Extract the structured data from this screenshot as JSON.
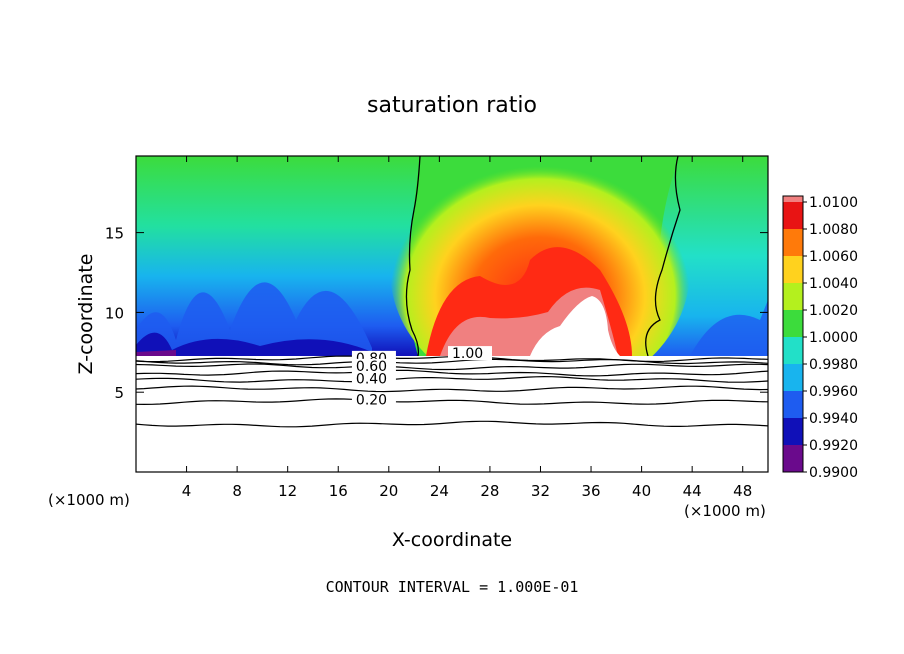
{
  "chart_data": {
    "type": "heatmap",
    "title": "saturation ratio",
    "xlabel": "X-coordinate",
    "ylabel": "Z-coordinate",
    "x_unit": "(×1000 m)",
    "xlim": [
      0,
      50
    ],
    "ylim": [
      0,
      19.8
    ],
    "xticks": [
      4,
      8,
      12,
      16,
      20,
      24,
      28,
      32,
      36,
      40,
      44,
      48
    ],
    "yticks": [
      5,
      10,
      15
    ],
    "colorbar": {
      "levels": [
        0.99,
        0.992,
        0.994,
        0.996,
        0.998,
        1.0,
        1.002,
        1.004,
        1.006,
        1.008,
        1.01
      ],
      "labels": [
        "0.9900",
        "0.9920",
        "0.9940",
        "0.9960",
        "0.9980",
        "1.0000",
        "1.0020",
        "1.0040",
        "1.0060",
        "1.0080",
        "1.0100"
      ],
      "colors": [
        "#6a0a8c",
        "#1010b8",
        "#1e5cf0",
        "#18b4ee",
        "#22e0c8",
        "#3cdc3c",
        "#b4f01e",
        "#ffd21e",
        "#ff7a0a",
        "#e81414",
        "#f08080"
      ]
    },
    "contour_labels": [
      {
        "text": "0.80",
        "x": 17.4,
        "z": 6.9
      },
      {
        "text": "0.60",
        "x": 17.4,
        "z": 6.4
      },
      {
        "text": "0.40",
        "x": 17.4,
        "z": 5.6
      },
      {
        "text": "0.20",
        "x": 17.4,
        "z": 4.3
      },
      {
        "text": "1.00",
        "x": 25.0,
        "z": 7.2
      }
    ],
    "contour_levels_below": [
      3.0,
      4.4,
      5.2,
      5.8,
      6.2,
      6.6,
      6.9,
      7.1
    ],
    "footnote": "CONTOUR INTERVAL = 1.000E-01"
  }
}
